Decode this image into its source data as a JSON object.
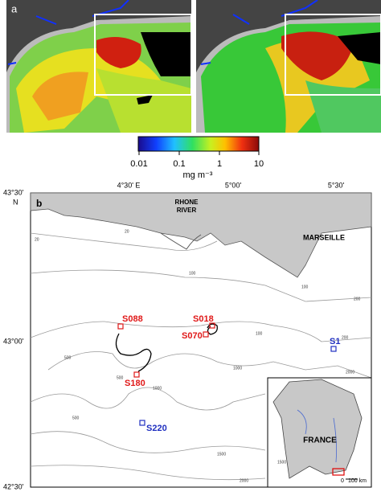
{
  "panel_a": {
    "label": "a",
    "colorbar": {
      "ticks": [
        "0.01",
        "0.1",
        "1",
        "10"
      ],
      "unit": "mg m⁻³"
    }
  },
  "panel_b": {
    "label": "b",
    "lat_labels": [
      "43°30'",
      "N",
      "43°00'",
      "42°30'"
    ],
    "lon_labels": [
      "4°30' E",
      "5°00'",
      "5°30'"
    ],
    "places": [
      "RHONE",
      "RIVER",
      "MARSEILLE"
    ],
    "stations": [
      {
        "name": "S088",
        "kind": "red"
      },
      {
        "name": "S018",
        "kind": "red"
      },
      {
        "name": "S070",
        "kind": "red"
      },
      {
        "name": "S180",
        "kind": "red"
      },
      {
        "name": "S1",
        "kind": "blue"
      },
      {
        "name": "S220",
        "kind": "blue"
      }
    ],
    "contour_labels": [
      "20",
      "20",
      "100",
      "100",
      "100",
      "200",
      "200",
      "500",
      "500",
      "1000",
      "1000",
      "1500",
      "2000",
      "2000",
      "500",
      "1500"
    ],
    "inset": {
      "country": "FRANCE",
      "scale_zero": "0",
      "scale_label": "100 km"
    }
  }
}
